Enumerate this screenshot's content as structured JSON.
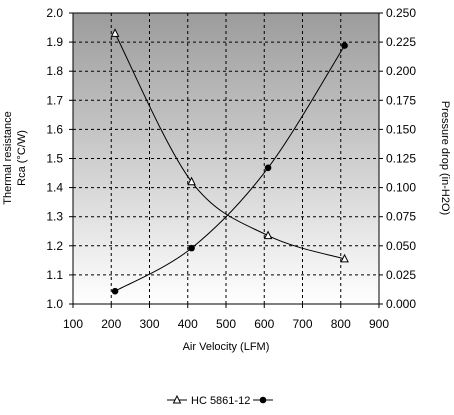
{
  "chart_data": {
    "type": "line",
    "x": [
      210,
      410,
      610,
      810
    ],
    "xlabel": "Air Velocity (LFM)",
    "xlim": [
      100,
      900
    ],
    "xticks": [
      100,
      200,
      300,
      400,
      500,
      600,
      700,
      800,
      900
    ],
    "ylabel": [
      "Thermal resistance",
      "Rca (°C/W)"
    ],
    "ylim": [
      1.0,
      2.0
    ],
    "yticks": [
      "1.0",
      "1.1",
      "1.2",
      "1.3",
      "1.4",
      "1.5",
      "1.6",
      "1.7",
      "1.8",
      "1.9",
      "2.0"
    ],
    "y2label": "Pressure drop (in-H2O)",
    "y2lim": [
      0,
      0.25
    ],
    "y2ticks": [
      "0.000",
      "0.025",
      "0.050",
      "0.075",
      "0.100",
      "0.125",
      "0.150",
      "0.175",
      "0.200",
      "0.225",
      "0.250"
    ],
    "grid": true,
    "background": "gradient gray",
    "legend_position": "bottom",
    "series": [
      {
        "name": "HC 5861-12",
        "axis": "left",
        "marker": "triangle-open",
        "values": [
          1.93,
          1.42,
          1.235,
          1.155
        ]
      },
      {
        "name": "",
        "axis": "right",
        "marker": "circle-filled",
        "values": [
          0.011,
          0.048,
          0.117,
          0.222
        ]
      }
    ]
  }
}
